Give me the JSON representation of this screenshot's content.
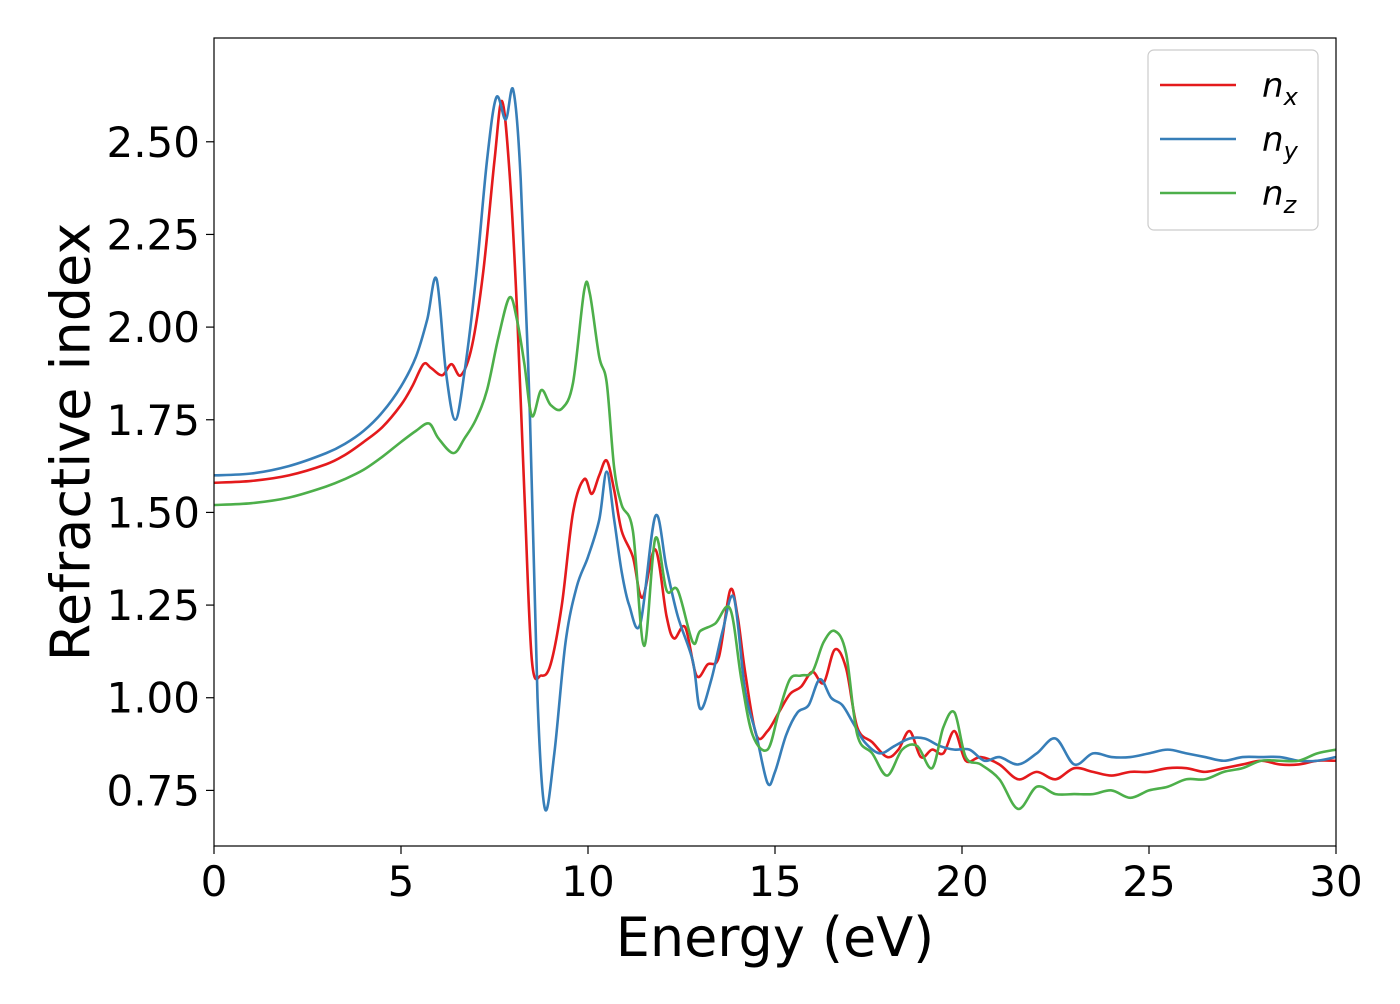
{
  "chart_data": {
    "type": "line",
    "xlabel": "Energy (eV)",
    "ylabel": "Refractive index",
    "xlim": [
      0,
      30
    ],
    "ylim": [
      0.6,
      2.78
    ],
    "xticks": [
      0,
      5,
      10,
      15,
      20,
      25,
      30
    ],
    "xtick_labels": [
      "0",
      "5",
      "10",
      "15",
      "20",
      "25",
      "30"
    ],
    "yticks": [
      0.75,
      1.0,
      1.25,
      1.5,
      1.75,
      2.0,
      2.25,
      2.5
    ],
    "ytick_labels": [
      "0.75",
      "1.00",
      "1.25",
      "1.50",
      "1.75",
      "2.00",
      "2.25",
      "2.50"
    ],
    "grid": false,
    "legend_position": "top-right",
    "series": [
      {
        "name": "n_x",
        "legend_main": "n",
        "legend_sub": "x",
        "color": "#e41a1c",
        "x": [
          0,
          1,
          2,
          3,
          3.5,
          4,
          4.5,
          5,
          5.3,
          5.6,
          5.8,
          6.1,
          6.35,
          6.6,
          6.9,
          7.2,
          7.5,
          7.7,
          7.9,
          8.1,
          8.3,
          8.5,
          8.75,
          9.0,
          9.3,
          9.6,
          9.9,
          10.1,
          10.3,
          10.5,
          10.7,
          10.9,
          11.2,
          11.45,
          11.8,
          12.1,
          12.3,
          12.6,
          12.9,
          13.2,
          13.5,
          13.8,
          14.0,
          14.2,
          14.5,
          14.8,
          15.1,
          15.4,
          15.7,
          16.0,
          16.3,
          16.6,
          16.9,
          17.2,
          17.6,
          18.0,
          18.3,
          18.6,
          18.9,
          19.2,
          19.5,
          19.8,
          20.1,
          20.5,
          21.0,
          21.5,
          22.0,
          22.5,
          23.0,
          23.5,
          24.0,
          24.5,
          25.0,
          25.5,
          26.0,
          26.5,
          27.0,
          27.5,
          28.0,
          28.5,
          29.0,
          29.5,
          30.0
        ],
        "y": [
          1.58,
          1.585,
          1.6,
          1.63,
          1.655,
          1.69,
          1.73,
          1.79,
          1.84,
          1.9,
          1.89,
          1.87,
          1.9,
          1.87,
          1.95,
          2.15,
          2.45,
          2.61,
          2.42,
          2.05,
          1.55,
          1.1,
          1.06,
          1.09,
          1.25,
          1.5,
          1.59,
          1.55,
          1.6,
          1.64,
          1.56,
          1.45,
          1.38,
          1.27,
          1.4,
          1.22,
          1.16,
          1.19,
          1.06,
          1.09,
          1.11,
          1.29,
          1.22,
          1.07,
          0.9,
          0.91,
          0.96,
          1.01,
          1.03,
          1.07,
          1.04,
          1.13,
          1.08,
          0.92,
          0.88,
          0.84,
          0.86,
          0.91,
          0.84,
          0.86,
          0.85,
          0.91,
          0.83,
          0.84,
          0.82,
          0.78,
          0.8,
          0.78,
          0.81,
          0.8,
          0.79,
          0.8,
          0.8,
          0.81,
          0.81,
          0.8,
          0.81,
          0.82,
          0.83,
          0.82,
          0.82,
          0.83,
          0.83
        ]
      },
      {
        "name": "n_y",
        "legend_main": "n",
        "legend_sub": "y",
        "color": "#377eb8",
        "x": [
          0,
          1,
          2,
          3,
          3.5,
          4,
          4.5,
          5,
          5.4,
          5.7,
          5.95,
          6.2,
          6.45,
          6.7,
          7.0,
          7.3,
          7.55,
          7.8,
          8.0,
          8.2,
          8.45,
          8.65,
          8.85,
          9.1,
          9.4,
          9.7,
          10.0,
          10.3,
          10.5,
          10.7,
          10.9,
          11.1,
          11.4,
          11.8,
          12.1,
          12.4,
          12.8,
          13.0,
          13.3,
          13.6,
          13.9,
          14.2,
          14.5,
          14.8,
          15.0,
          15.3,
          15.6,
          15.9,
          16.2,
          16.5,
          16.8,
          17.1,
          17.4,
          17.8,
          18.2,
          18.6,
          19.0,
          19.4,
          19.8,
          20.2,
          20.6,
          21.0,
          21.5,
          22.0,
          22.5,
          23.0,
          23.5,
          24.0,
          24.5,
          25.0,
          25.5,
          26.0,
          26.5,
          27.0,
          27.5,
          28.0,
          28.5,
          29.0,
          29.5,
          30.0
        ],
        "y": [
          1.6,
          1.605,
          1.625,
          1.66,
          1.685,
          1.72,
          1.77,
          1.84,
          1.92,
          2.02,
          2.13,
          1.88,
          1.75,
          1.88,
          2.13,
          2.45,
          2.62,
          2.56,
          2.64,
          2.4,
          1.75,
          1.0,
          0.7,
          0.85,
          1.15,
          1.3,
          1.38,
          1.48,
          1.61,
          1.48,
          1.34,
          1.25,
          1.2,
          1.49,
          1.35,
          1.22,
          1.1,
          0.97,
          1.05,
          1.18,
          1.27,
          1.02,
          0.9,
          0.77,
          0.8,
          0.9,
          0.96,
          0.98,
          1.05,
          1.0,
          0.98,
          0.93,
          0.88,
          0.85,
          0.87,
          0.89,
          0.89,
          0.87,
          0.86,
          0.86,
          0.83,
          0.84,
          0.82,
          0.85,
          0.89,
          0.82,
          0.85,
          0.84,
          0.84,
          0.85,
          0.86,
          0.85,
          0.84,
          0.83,
          0.84,
          0.84,
          0.84,
          0.83,
          0.83,
          0.84
        ]
      },
      {
        "name": "n_z",
        "legend_main": "n",
        "legend_sub": "z",
        "color": "#4daf4a",
        "x": [
          0,
          1,
          2,
          3,
          3.5,
          4,
          4.5,
          5,
          5.4,
          5.75,
          6.0,
          6.4,
          6.7,
          7.0,
          7.3,
          7.6,
          7.9,
          8.1,
          8.3,
          8.5,
          8.75,
          9.0,
          9.3,
          9.6,
          9.9,
          10.05,
          10.3,
          10.5,
          10.7,
          10.9,
          11.2,
          11.5,
          11.8,
          12.1,
          12.4,
          12.8,
          13.0,
          13.4,
          13.8,
          14.1,
          14.4,
          14.8,
          15.1,
          15.4,
          15.7,
          16.0,
          16.3,
          16.6,
          16.9,
          17.2,
          17.6,
          18.0,
          18.4,
          18.8,
          19.2,
          19.5,
          19.8,
          20.1,
          20.5,
          21.0,
          21.5,
          22.0,
          22.5,
          23.0,
          23.5,
          24.0,
          24.5,
          25.0,
          25.5,
          26.0,
          26.5,
          27.0,
          27.5,
          28.0,
          28.5,
          29.0,
          29.5,
          30.0
        ],
        "y": [
          1.52,
          1.525,
          1.54,
          1.57,
          1.59,
          1.615,
          1.65,
          1.69,
          1.72,
          1.74,
          1.7,
          1.66,
          1.7,
          1.75,
          1.83,
          1.97,
          2.08,
          2.02,
          1.9,
          1.76,
          1.83,
          1.79,
          1.78,
          1.85,
          2.1,
          2.09,
          1.92,
          1.85,
          1.62,
          1.52,
          1.45,
          1.14,
          1.43,
          1.29,
          1.29,
          1.15,
          1.18,
          1.2,
          1.24,
          1.05,
          0.9,
          0.86,
          0.96,
          1.05,
          1.06,
          1.07,
          1.15,
          1.18,
          1.12,
          0.9,
          0.85,
          0.79,
          0.86,
          0.87,
          0.81,
          0.92,
          0.96,
          0.84,
          0.82,
          0.78,
          0.7,
          0.76,
          0.74,
          0.74,
          0.74,
          0.75,
          0.73,
          0.75,
          0.76,
          0.78,
          0.78,
          0.8,
          0.81,
          0.83,
          0.83,
          0.83,
          0.85,
          0.86
        ]
      }
    ]
  }
}
